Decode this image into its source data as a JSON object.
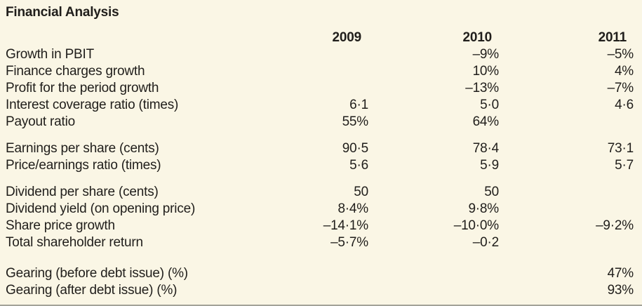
{
  "page": {
    "title": "Financial Analysis",
    "colors": {
      "bg": "#FAF6E5",
      "fg": "#201E1B",
      "rule": "#A3A299"
    }
  },
  "table": {
    "columns": [
      "2009",
      "2010",
      "2011"
    ],
    "groups": [
      {
        "rows": [
          {
            "label": "Growth in PBIT",
            "values": [
              "",
              "–9%",
              "–5%"
            ]
          },
          {
            "label": "Finance charges growth",
            "values": [
              "",
              "10%",
              "4%"
            ]
          },
          {
            "label": "Profit for the period growth",
            "values": [
              "",
              "–13%",
              "–7%"
            ]
          },
          {
            "label": "Interest coverage ratio (times)",
            "values": [
              "6·1",
              "5·0",
              "4·6"
            ]
          },
          {
            "label": "Payout ratio",
            "values": [
              "55%",
              "64%",
              ""
            ]
          }
        ]
      },
      {
        "rows": [
          {
            "label": "Earnings per share (cents)",
            "values": [
              "90·5",
              "78·4",
              "73·1"
            ]
          },
          {
            "label": "Price/earnings ratio (times)",
            "values": [
              "5·6",
              "5·9",
              "5·7"
            ]
          }
        ]
      },
      {
        "rows": [
          {
            "label": "Dividend per share (cents)",
            "values": [
              "50",
              "50",
              ""
            ]
          },
          {
            "label": "Dividend yield (on opening price)",
            "values": [
              "8·4%",
              "9·8%",
              ""
            ]
          },
          {
            "label": "Share price growth",
            "values": [
              "–14·1%",
              "–10·0%",
              "–9·2%"
            ]
          },
          {
            "label": "Total shareholder return",
            "values": [
              "–5·7%",
              "–0·2",
              ""
            ]
          }
        ]
      },
      {
        "rows": [
          {
            "label": "Gearing (before debt issue) (%)",
            "values": [
              "",
              "",
              "47%"
            ]
          },
          {
            "label": "Gearing (after debt issue) (%)",
            "values": [
              "",
              "",
              "93%"
            ]
          }
        ]
      }
    ]
  }
}
